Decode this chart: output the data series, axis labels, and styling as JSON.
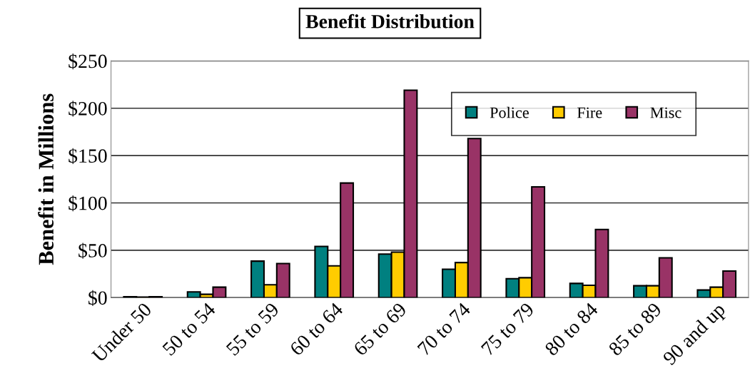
{
  "chart_data": {
    "type": "bar",
    "title": "Benefit Distribution",
    "ylabel": "Benefit in Millions",
    "categories": [
      "Under 50",
      "50 to 54",
      "55 to 59",
      "60 to 64",
      "65 to 69",
      "70 to 74",
      "75 to 79",
      "80 to 84",
      "85 to 89",
      "90 and up"
    ],
    "series": [
      {
        "name": "Police",
        "color": "#008080",
        "values": [
          1,
          6,
          38.5,
          54,
          46,
          30,
          20,
          15,
          12.5,
          8
        ]
      },
      {
        "name": "Fire",
        "color": "#ffcc00",
        "values": [
          0.5,
          3.5,
          13.5,
          33.5,
          48,
          37,
          21,
          13,
          12.5,
          11
        ]
      },
      {
        "name": "Misc",
        "color": "#993366",
        "values": [
          1,
          11,
          36,
          121,
          219,
          168,
          117,
          72,
          42,
          28
        ]
      }
    ],
    "ylim": [
      0,
      250
    ],
    "yticks": [
      {
        "value": 0,
        "label": "$0"
      },
      {
        "value": 50,
        "label": "$50"
      },
      {
        "value": 100,
        "label": "$100"
      },
      {
        "value": 150,
        "label": "$150"
      },
      {
        "value": 200,
        "label": "$200"
      },
      {
        "value": 250,
        "label": "$250"
      }
    ],
    "grid": "y",
    "legend": "top right"
  }
}
